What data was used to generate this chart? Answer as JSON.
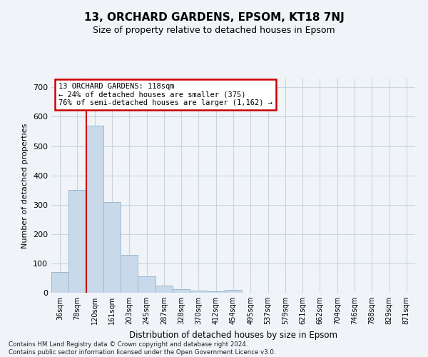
{
  "title1": "13, ORCHARD GARDENS, EPSOM, KT18 7NJ",
  "title2": "Size of property relative to detached houses in Epsom",
  "xlabel": "Distribution of detached houses by size in Epsom",
  "ylabel": "Number of detached properties",
  "bin_labels": [
    "36sqm",
    "78sqm",
    "120sqm",
    "161sqm",
    "203sqm",
    "245sqm",
    "287sqm",
    "328sqm",
    "370sqm",
    "412sqm",
    "454sqm",
    "495sqm",
    "537sqm",
    "579sqm",
    "621sqm",
    "662sqm",
    "704sqm",
    "746sqm",
    "788sqm",
    "829sqm",
    "871sqm"
  ],
  "bar_heights": [
    70,
    350,
    570,
    310,
    128,
    57,
    25,
    13,
    7,
    6,
    10,
    0,
    0,
    0,
    0,
    0,
    0,
    0,
    0,
    0,
    0
  ],
  "bar_color": "#c8d9ea",
  "bar_edge_color": "#9ab8d0",
  "vline_color": "#cc0000",
  "vline_x": 1.5,
  "annotation_line1": "13 ORCHARD GARDENS: 118sqm",
  "annotation_line2": "← 24% of detached houses are smaller (375)",
  "annotation_line3": "76% of semi-detached houses are larger (1,162) →",
  "annotation_box_color": "#ffffff",
  "annotation_border_color": "#cc0000",
  "grid_color": "#c8d4e0",
  "background_color": "#f0f4f8",
  "plot_bg_color": "#f0f4f8",
  "ylim": [
    0,
    730
  ],
  "yticks": [
    0,
    100,
    200,
    300,
    400,
    500,
    600,
    700
  ],
  "footer_line1": "Contains HM Land Registry data © Crown copyright and database right 2024.",
  "footer_line2": "Contains public sector information licensed under the Open Government Licence v3.0."
}
